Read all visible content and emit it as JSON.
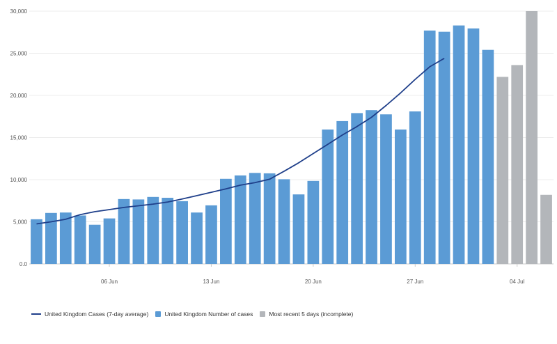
{
  "chart_data": {
    "type": "bar",
    "title": "",
    "xlabel": "",
    "ylabel": "",
    "ylim": [
      0,
      30000
    ],
    "yticks": [
      0,
      5000,
      10000,
      15000,
      20000,
      25000,
      30000
    ],
    "ytick_labels": [
      "0.0",
      "5,000",
      "10,000",
      "15,000",
      "20,000",
      "25,000",
      "30,000"
    ],
    "xtick_labels": [
      "06 Jun",
      "13 Jun",
      "20 Jun",
      "27 Jun",
      "04 Jul"
    ],
    "xtick_dates": [
      "2021-06-06",
      "2021-06-13",
      "2021-06-20",
      "2021-06-27",
      "2021-07-04"
    ],
    "grid": true,
    "legend_position": "bottom-left",
    "x": [
      "2021-06-01",
      "2021-06-02",
      "2021-06-03",
      "2021-06-04",
      "2021-06-05",
      "2021-06-06",
      "2021-06-07",
      "2021-06-08",
      "2021-06-09",
      "2021-06-10",
      "2021-06-11",
      "2021-06-12",
      "2021-06-13",
      "2021-06-14",
      "2021-06-15",
      "2021-06-16",
      "2021-06-17",
      "2021-06-18",
      "2021-06-19",
      "2021-06-20",
      "2021-06-21",
      "2021-06-22",
      "2021-06-23",
      "2021-06-24",
      "2021-06-25",
      "2021-06-26",
      "2021-06-27",
      "2021-06-28",
      "2021-06-29",
      "2021-06-30",
      "2021-07-01",
      "2021-07-02",
      "2021-07-03",
      "2021-07-04",
      "2021-07-05",
      "2021-07-06"
    ],
    "series": [
      {
        "name": "United Kingdom Cases (7-day average)",
        "kind": "line",
        "color": "#1f3f8a",
        "x": [
          "2021-06-01",
          "2021-06-02",
          "2021-06-03",
          "2021-06-04",
          "2021-06-05",
          "2021-06-06",
          "2021-06-07",
          "2021-06-08",
          "2021-06-09",
          "2021-06-10",
          "2021-06-11",
          "2021-06-12",
          "2021-06-13",
          "2021-06-14",
          "2021-06-15",
          "2021-06-16",
          "2021-06-17",
          "2021-06-18",
          "2021-06-19",
          "2021-06-20",
          "2021-06-21",
          "2021-06-22",
          "2021-06-23",
          "2021-06-24",
          "2021-06-25",
          "2021-06-26",
          "2021-06-27",
          "2021-06-28",
          "2021-06-29"
        ],
        "values": [
          4750,
          5000,
          5300,
          5850,
          6200,
          6450,
          6700,
          6900,
          7100,
          7350,
          7700,
          8100,
          8500,
          8900,
          9350,
          9650,
          10050,
          11000,
          12000,
          13100,
          14200,
          15300,
          16300,
          17400,
          18800,
          20300,
          21900,
          23400,
          24400
        ]
      },
      {
        "name": "United Kingdom Number of cases",
        "kind": "bar",
        "color": "#5b9bd5",
        "values": [
          5300,
          6050,
          6100,
          5750,
          4650,
          5400,
          7700,
          7650,
          7950,
          7850,
          7450,
          6100,
          6950,
          10100,
          10500,
          10800,
          10750,
          10050,
          8250,
          9850,
          15950,
          16950,
          17900,
          18250,
          17750,
          15950,
          18100,
          27700,
          27550,
          28300,
          27950,
          25400,
          null,
          null,
          null,
          null
        ]
      },
      {
        "name": "Most recent 5 days (incomplete)",
        "kind": "bar",
        "color": "#b3b6ba",
        "values": [
          null,
          null,
          null,
          null,
          null,
          null,
          null,
          null,
          null,
          null,
          null,
          null,
          null,
          null,
          null,
          null,
          null,
          null,
          null,
          null,
          null,
          null,
          null,
          null,
          null,
          null,
          null,
          null,
          null,
          null,
          null,
          null,
          22200,
          23600,
          30000,
          8200
        ]
      }
    ]
  }
}
